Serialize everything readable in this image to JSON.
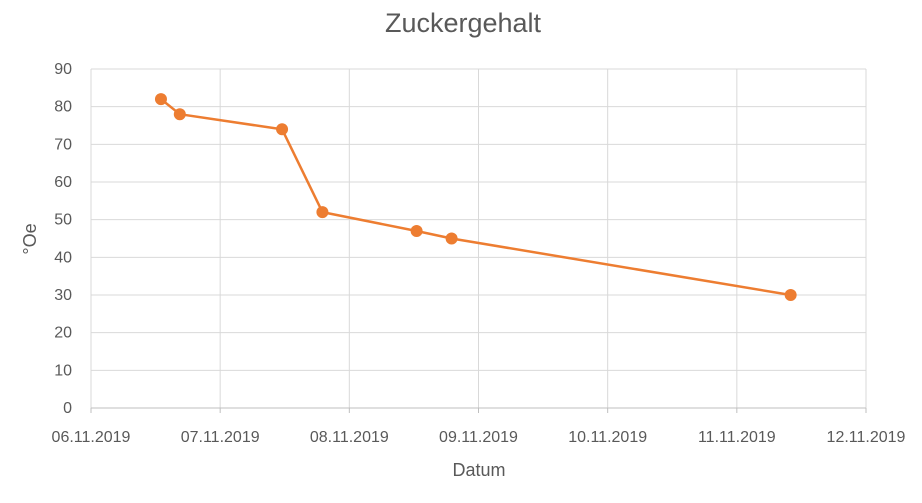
{
  "chart_data": {
    "type": "scatter",
    "title": "Zuckergehalt",
    "xlabel": "Datum",
    "ylabel": "°Oe",
    "x_ticks": [
      "06.11.2019",
      "07.11.2019",
      "08.11.2019",
      "09.11.2019",
      "10.11.2019",
      "11.11.2019",
      "12.11.2019"
    ],
    "y_ticks": [
      "0",
      "10",
      "20",
      "30",
      "40",
      "50",
      "60",
      "70",
      "80",
      "90"
    ],
    "xlim": [
      "06.11.2019",
      "12.11.2019"
    ],
    "ylim": [
      0,
      90
    ],
    "grid": true,
    "legend": "none",
    "series": [
      {
        "color": "#ED7D31",
        "points": [
          {
            "x": "06.11.2019 13:00",
            "y": 82
          },
          {
            "x": "06.11.2019 16:30",
            "y": 78
          },
          {
            "x": "07.11.2019 11:30",
            "y": 74
          },
          {
            "x": "07.11.2019 19:00",
            "y": 52
          },
          {
            "x": "08.11.2019 12:30",
            "y": 47
          },
          {
            "x": "08.11.2019 19:00",
            "y": 45
          },
          {
            "x": "11.11.2019 10:00",
            "y": 30
          }
        ]
      }
    ]
  }
}
